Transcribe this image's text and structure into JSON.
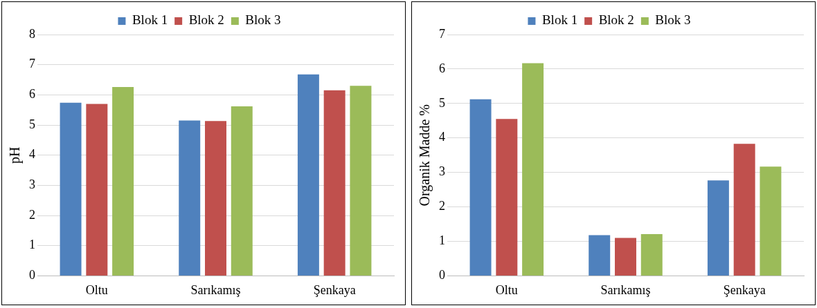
{
  "chart_data": [
    {
      "type": "bar",
      "ylabel": "pH",
      "categories": [
        "Oltu",
        "Sarıkamış",
        "Şenkaya"
      ],
      "series": [
        {
          "name": "Blok 1",
          "color": "#4f81bd",
          "values": [
            5.74,
            5.15,
            6.68
          ]
        },
        {
          "name": "Blok 2",
          "color": "#c0504d",
          "values": [
            5.7,
            5.13,
            6.15
          ]
        },
        {
          "name": "Blok 3",
          "color": "#9bbb59",
          "values": [
            6.26,
            5.62,
            6.3
          ]
        }
      ],
      "ylim": [
        0,
        8
      ],
      "yticks": [
        0,
        1,
        2,
        3,
        4,
        5,
        6,
        7,
        8
      ],
      "grid": "y",
      "legend": "top"
    },
    {
      "type": "bar",
      "ylabel": "Organik Madde %",
      "categories": [
        "Oltu",
        "Sarıkamış",
        "Şenkaya"
      ],
      "series": [
        {
          "name": "Blok 1",
          "color": "#4f81bd",
          "values": [
            5.12,
            1.18,
            2.77
          ]
        },
        {
          "name": "Blok 2",
          "color": "#c0504d",
          "values": [
            4.55,
            1.1,
            3.83
          ]
        },
        {
          "name": "Blok 3",
          "color": "#9bbb59",
          "values": [
            6.17,
            1.21,
            3.17
          ]
        }
      ],
      "ylim": [
        0,
        7
      ],
      "yticks": [
        0,
        1,
        2,
        3,
        4,
        5,
        6,
        7
      ],
      "grid": "y",
      "legend": "top"
    }
  ]
}
